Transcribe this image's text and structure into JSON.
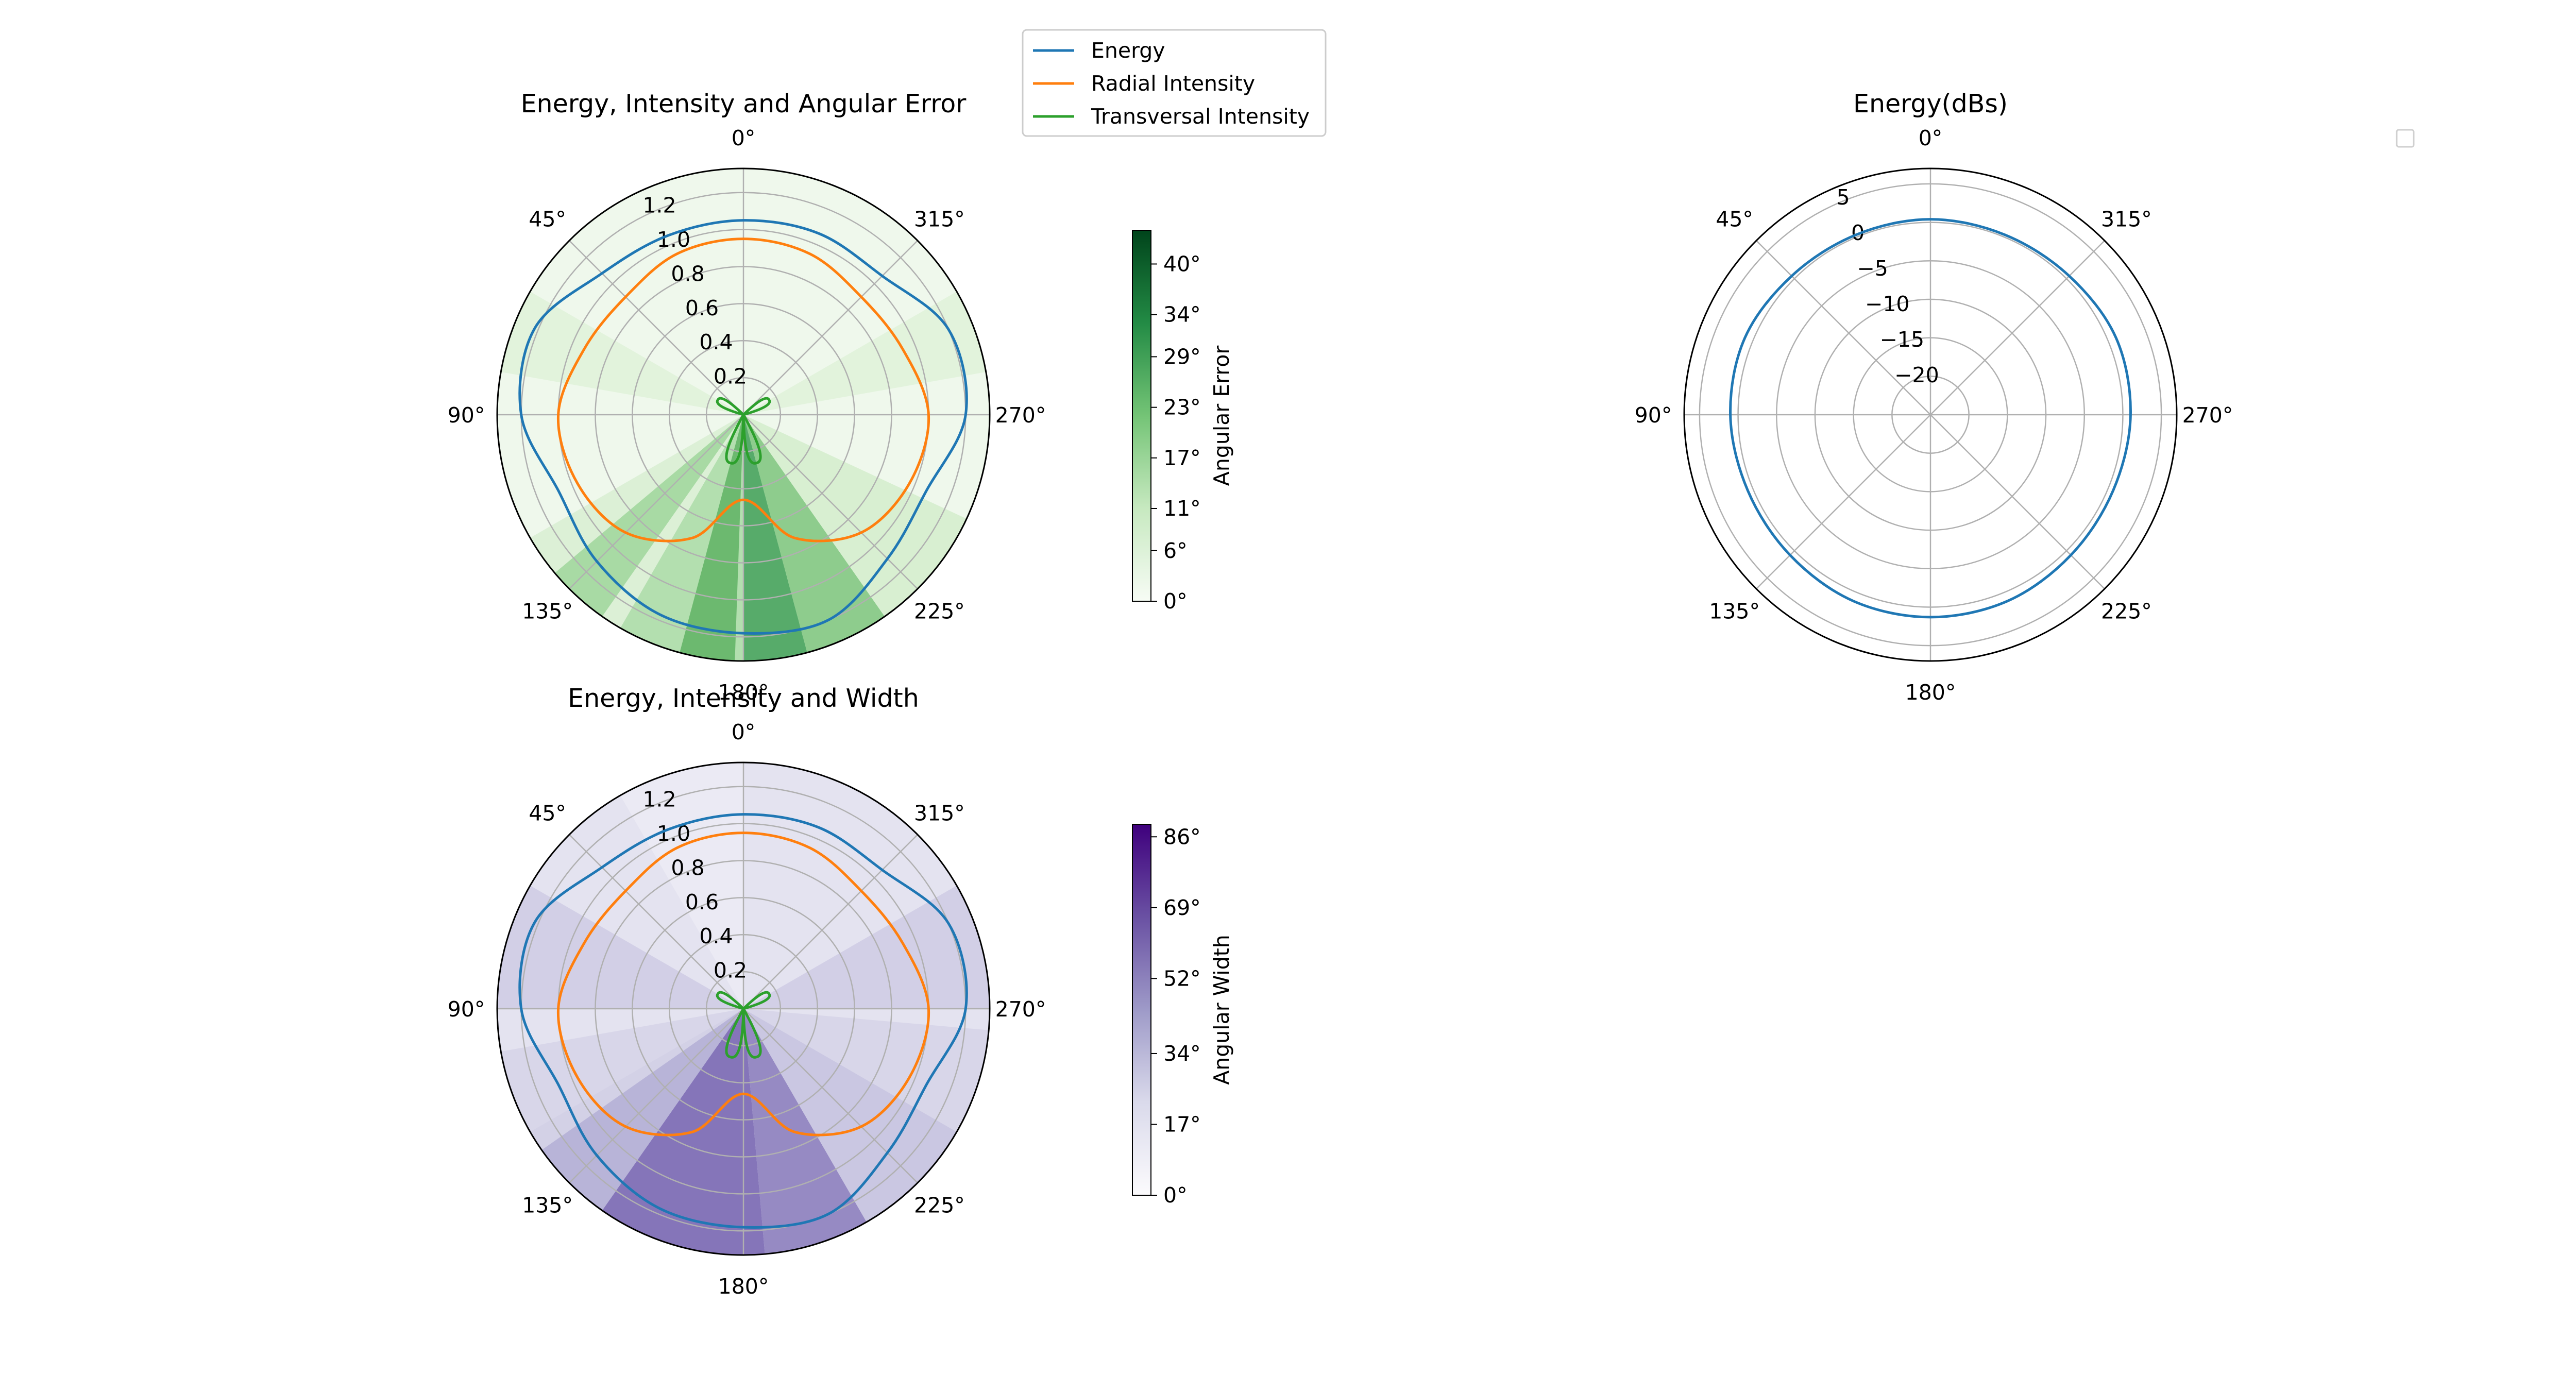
{
  "chart_data": [
    {
      "type": "polar-line",
      "title": "Energy, Intensity and Angular Error",
      "angle_ticks": [
        "0°",
        "45°",
        "90°",
        "135°",
        "180°",
        "225°",
        "270°",
        "315°"
      ],
      "theta_direction": "counterclockwise from top",
      "radial_ticks": [
        "0.2",
        "0.4",
        "0.6",
        "0.8",
        "1.0",
        "1.2"
      ],
      "rlim": [
        0,
        1.33
      ],
      "grid": true,
      "background_map": {
        "colormap": "Greens",
        "label": "Angular Error",
        "ticks": [
          "0°",
          "6°",
          "11°",
          "17°",
          "23°",
          "29°",
          "34°",
          "40°"
        ],
        "range": [
          0,
          44
        ]
      },
      "series": [
        {
          "name": "Energy",
          "color": "#1f77b4",
          "theta_deg": [
            0,
            22.5,
            45,
            67.5,
            90,
            112.5,
            135,
            157.5,
            180,
            202.5,
            225,
            247.5,
            270,
            292.5,
            315,
            337.5
          ],
          "r": [
            1.05,
            1.05,
            1.08,
            1.22,
            1.2,
            1.08,
            1.12,
            1.17,
            1.18,
            1.2,
            1.1,
            1.07,
            1.2,
            1.2,
            1.06,
            1.06
          ]
        },
        {
          "name": "Radial Intensity",
          "color": "#ff7f0e",
          "theta_deg": [
            0,
            22.5,
            45,
            67.5,
            90,
            112.5,
            135,
            157.5,
            180,
            202.5,
            225,
            247.5,
            270,
            292.5,
            315,
            337.5
          ],
          "r": [
            0.95,
            0.94,
            0.9,
            0.93,
            1.0,
            0.97,
            0.9,
            0.72,
            0.46,
            0.72,
            0.9,
            0.97,
            1.0,
            0.93,
            0.9,
            0.94
          ]
        },
        {
          "name": "Transversal Intensity",
          "color": "#2ca02c",
          "shape": "petals",
          "petals": [
            {
              "theta_deg": 60,
              "r": 0.16
            },
            {
              "theta_deg": 165,
              "r": 0.27
            },
            {
              "theta_deg": 195,
              "r": 0.27
            },
            {
              "theta_deg": 300,
              "r": 0.16
            }
          ]
        }
      ]
    },
    {
      "type": "polar-line",
      "title": "Energy(dBs)",
      "angle_ticks": [
        "0°",
        "45°",
        "90°",
        "135°",
        "180°",
        "225°",
        "270°",
        "315°"
      ],
      "radial_ticks": [
        "−20",
        "−15",
        "−10",
        "−5",
        "0",
        "5"
      ],
      "rlim": [
        -25,
        7
      ],
      "grid": true,
      "legend": "empty, top-right",
      "series": [
        {
          "name": "Energy",
          "color": "#1f77b4",
          "theta_deg": [
            0,
            22.5,
            45,
            67.5,
            90,
            112.5,
            135,
            157.5,
            180,
            202.5,
            225,
            247.5,
            270,
            292.5,
            315,
            337.5
          ],
          "r": [
            0.4,
            0.3,
            0.5,
            1.1,
            1.0,
            0.7,
            0.8,
            1.2,
            1.3,
            1.2,
            0.8,
            0.7,
            1.0,
            1.1,
            0.5,
            0.3
          ]
        }
      ]
    },
    {
      "type": "polar-line",
      "title": "Energy, Intensity and Width",
      "angle_ticks": [
        "0°",
        "45°",
        "90°",
        "135°",
        "180°",
        "225°",
        "270°",
        "315°"
      ],
      "radial_ticks": [
        "0.2",
        "0.4",
        "0.6",
        "0.8",
        "1.0",
        "1.2"
      ],
      "rlim": [
        0,
        1.33
      ],
      "grid": true,
      "background_map": {
        "colormap": "Purples",
        "label": "Angular Width",
        "ticks": [
          "0°",
          "17°",
          "34°",
          "52°",
          "69°",
          "86°"
        ],
        "range": [
          0,
          89
        ]
      },
      "series": [
        {
          "name": "Energy",
          "color": "#1f77b4",
          "theta_deg": [
            0,
            22.5,
            45,
            67.5,
            90,
            112.5,
            135,
            157.5,
            180,
            202.5,
            225,
            247.5,
            270,
            292.5,
            315,
            337.5
          ],
          "r": [
            1.05,
            1.05,
            1.08,
            1.22,
            1.2,
            1.08,
            1.12,
            1.17,
            1.18,
            1.2,
            1.1,
            1.07,
            1.2,
            1.2,
            1.06,
            1.06
          ]
        },
        {
          "name": "Radial Intensity",
          "color": "#ff7f0e",
          "theta_deg": [
            0,
            22.5,
            45,
            67.5,
            90,
            112.5,
            135,
            157.5,
            180,
            202.5,
            225,
            247.5,
            270,
            292.5,
            315,
            337.5
          ],
          "r": [
            0.95,
            0.94,
            0.9,
            0.93,
            1.0,
            0.97,
            0.9,
            0.72,
            0.46,
            0.72,
            0.9,
            0.97,
            1.0,
            0.93,
            0.9,
            0.94
          ]
        },
        {
          "name": "Transversal Intensity",
          "color": "#2ca02c",
          "shape": "petals",
          "petals": [
            {
              "theta_deg": 60,
              "r": 0.16
            },
            {
              "theta_deg": 165,
              "r": 0.27
            },
            {
              "theta_deg": 195,
              "r": 0.27
            },
            {
              "theta_deg": 300,
              "r": 0.16
            }
          ]
        }
      ]
    }
  ],
  "legend": {
    "placement": "top-center",
    "entries": [
      {
        "label": "Energy",
        "color": "#1f77b4"
      },
      {
        "label": "Radial Intensity",
        "color": "#ff7f0e"
      },
      {
        "label": "Transversal Intensity",
        "color": "#2ca02c"
      }
    ]
  }
}
